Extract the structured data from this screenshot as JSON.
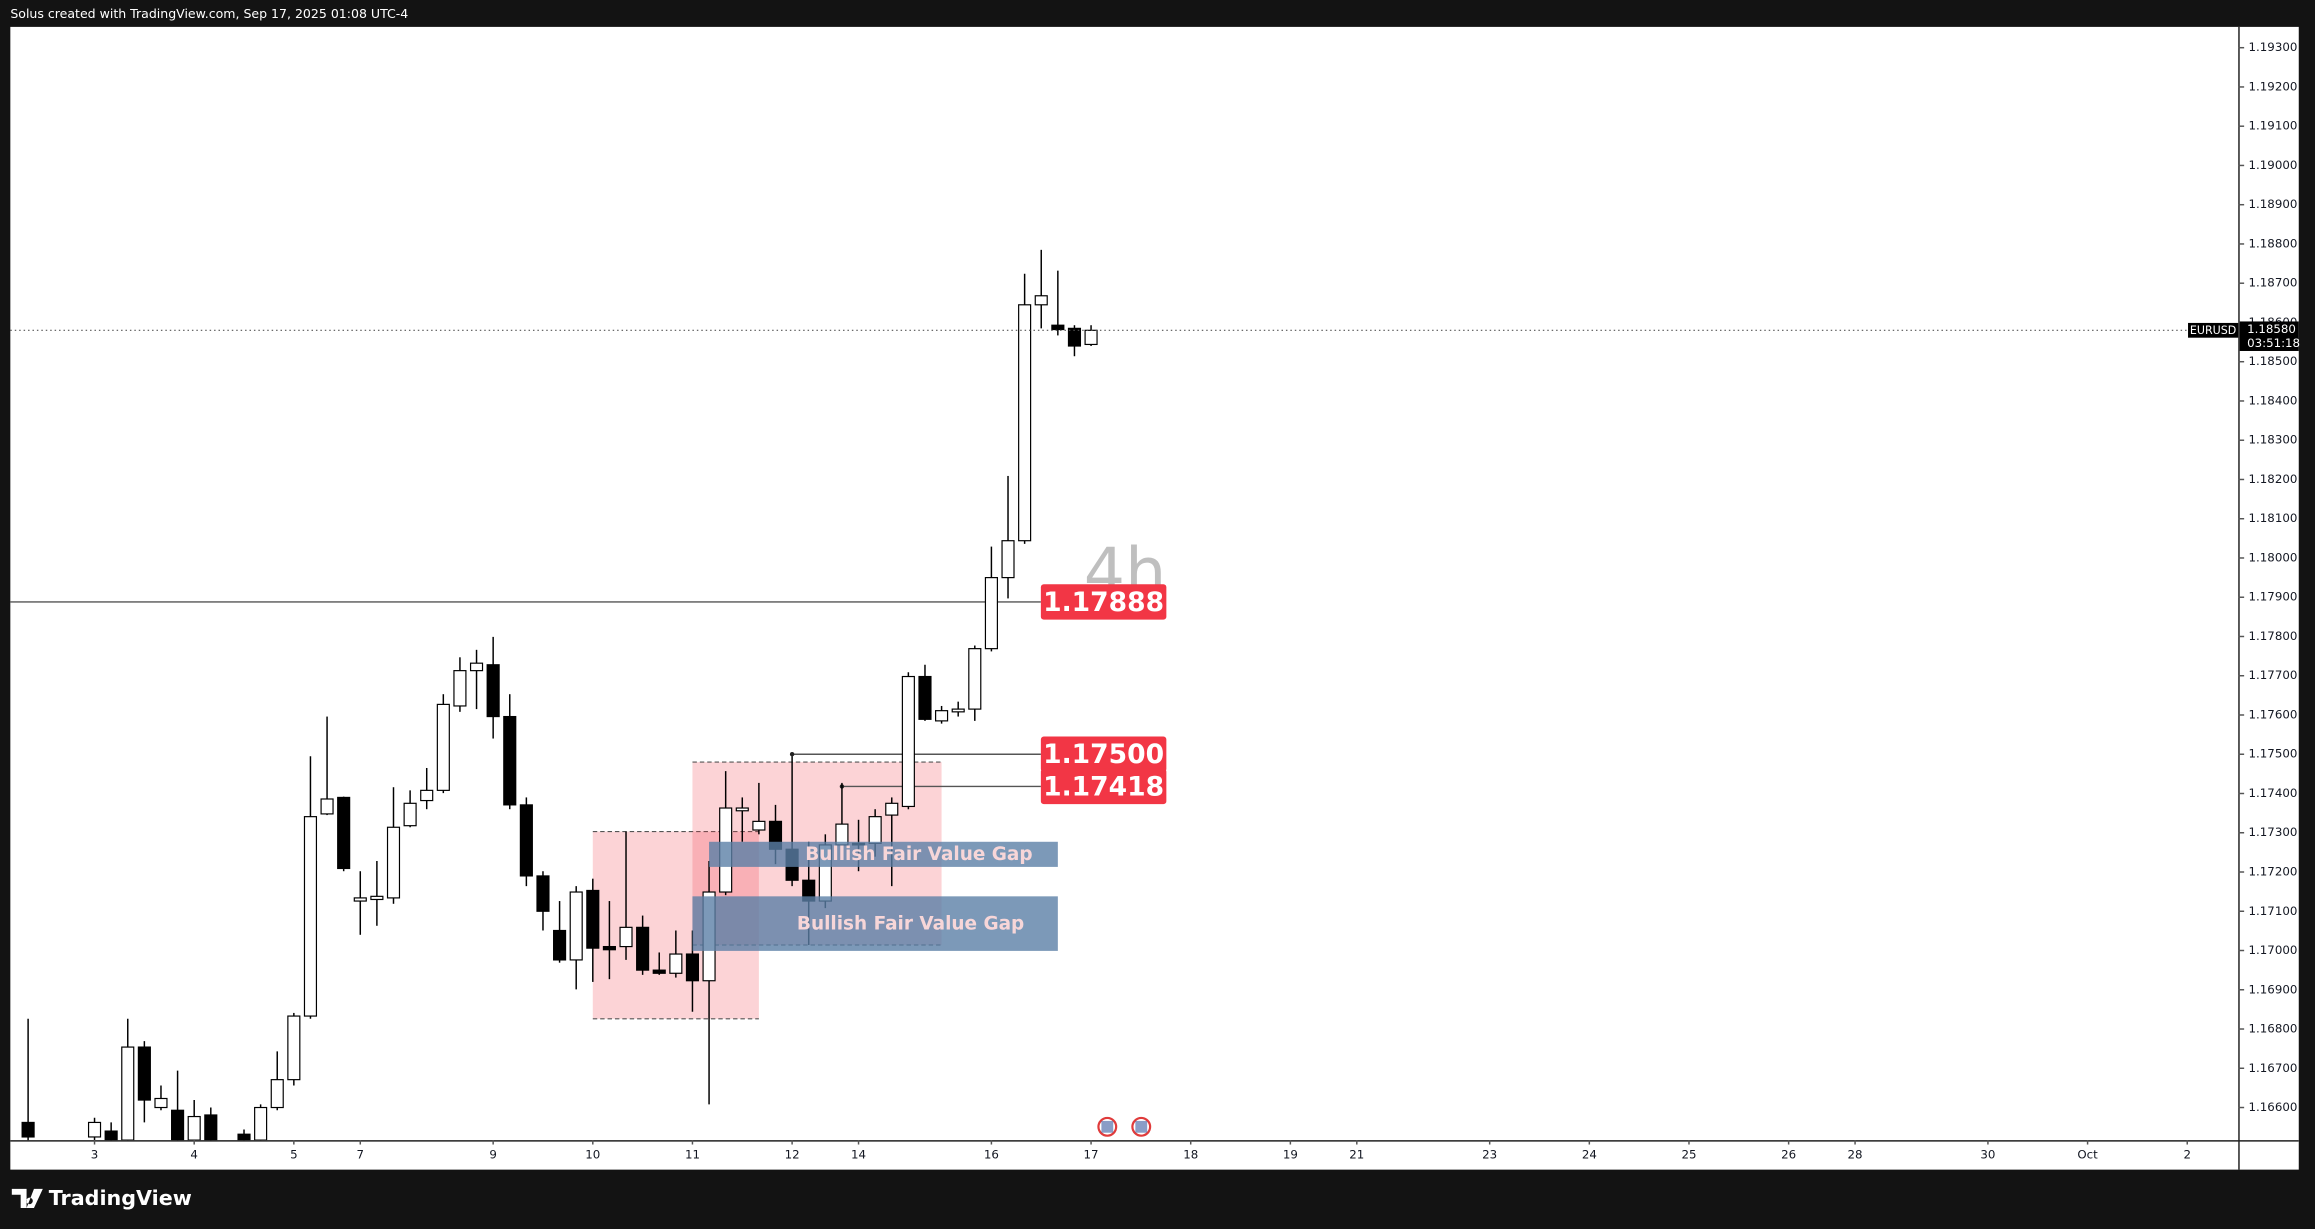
{
  "header": "Solus created with TradingView.com, Sep 17, 2025 01:08 UTC-4",
  "footer": "TradingView",
  "chart_data": {
    "type": "candlestick",
    "symbol": "EURUSD",
    "timeframe": "4h",
    "x": [
      0,
      4,
      5,
      6,
      7,
      8,
      9,
      10,
      11,
      13,
      14,
      15,
      16,
      17,
      18,
      19,
      20,
      21,
      22,
      23,
      24,
      25,
      26,
      27,
      28,
      29,
      30,
      31,
      32,
      33,
      34,
      35,
      36,
      37,
      38,
      39,
      40,
      41,
      42,
      43,
      44,
      45,
      46,
      47,
      48,
      49,
      50,
      51,
      52,
      53,
      54,
      55,
      56,
      57,
      58,
      59,
      60,
      61,
      62,
      63,
      64
    ],
    "open": [
      1.16562,
      1.16525,
      1.1654,
      1.16517,
      1.16754,
      1.166,
      1.16593,
      1.16517,
      1.16581,
      1.16532,
      1.16517,
      1.166,
      1.16671,
      1.16833,
      1.17348,
      1.1739,
      1.17126,
      1.1713,
      1.17134,
      1.17318,
      1.17382,
      1.17408,
      1.17623,
      1.17713,
      1.17728,
      1.17596,
      1.17371,
      1.1719,
      1.17051,
      1.16976,
      1.17153,
      1.1701,
      1.1701,
      1.17059,
      1.1695,
      1.16942,
      1.16991,
      1.16923,
      1.17149,
      1.17356,
      1.17307,
      1.17329,
      1.17258,
      1.17179,
      1.17126,
      1.17269,
      1.17273,
      1.17273,
      1.17345,
      1.17367,
      1.17698,
      1.17585,
      1.17608,
      1.17615,
      1.17769,
      1.1795,
      1.18044,
      1.18645,
      1.18593,
      1.18585,
      1.18544
    ],
    "high": [
      1.16826,
      1.16574,
      1.16562,
      1.16826,
      1.16769,
      1.16656,
      1.16694,
      1.16619,
      1.166,
      1.16544,
      1.16608,
      1.16743,
      1.16841,
      1.17495,
      1.17596,
      1.17392,
      1.17202,
      1.17228,
      1.17416,
      1.17408,
      1.17465,
      1.17653,
      1.17747,
      1.17766,
      1.17799,
      1.17653,
      1.1739,
      1.17202,
      1.17126,
      1.17164,
      1.17183,
      1.17126,
      1.17303,
      1.17089,
      1.16995,
      1.17051,
      1.17051,
      1.17228,
      1.17457,
      1.1739,
      1.17427,
      1.17371,
      1.17495,
      1.17277,
      1.17296,
      1.17427,
      1.17333,
      1.1736,
      1.1739,
      1.17709,
      1.17728,
      1.17623,
      1.17634,
      1.17777,
      1.18029,
      1.18209,
      1.18724,
      1.18785,
      1.18732,
      1.18593,
      1.18593
    ],
    "low": [
      1.16487,
      1.16517,
      1.16506,
      1.16506,
      1.16562,
      1.16593,
      1.16506,
      1.16506,
      1.16506,
      1.16506,
      1.16506,
      1.16593,
      1.16656,
      1.16826,
      1.17345,
      1.17202,
      1.1704,
      1.17063,
      1.17119,
      1.17314,
      1.1736,
      1.17401,
      1.17608,
      1.17615,
      1.1754,
      1.1736,
      1.17164,
      1.17051,
      1.16969,
      1.16901,
      1.1692,
      1.16927,
      1.16976,
      1.16938,
      1.16938,
      1.16931,
      1.16844,
      1.16608,
      1.17141,
      1.17277,
      1.17296,
      1.1722,
      1.17164,
      1.17014,
      1.17108,
      1.17258,
      1.17202,
      1.17239,
      1.17164,
      1.1736,
      1.17585,
      1.17578,
      1.17596,
      1.17585,
      1.17762,
      1.17897,
      1.18036,
      1.18585,
      1.18567,
      1.18514,
      1.1854
    ],
    "close": [
      1.16525,
      1.16562,
      1.16517,
      1.16754,
      1.16619,
      1.16623,
      1.16517,
      1.16577,
      1.16517,
      1.16517,
      1.166,
      1.16671,
      1.16833,
      1.17341,
      1.17386,
      1.17209,
      1.17134,
      1.17138,
      1.17314,
      1.17375,
      1.17408,
      1.17627,
      1.17713,
      1.17732,
      1.17596,
      1.17371,
      1.1719,
      1.171,
      1.16976,
      1.17149,
      1.17006,
      1.17002,
      1.17059,
      1.1695,
      1.16942,
      1.16991,
      1.16923,
      1.17149,
      1.17363,
      1.17363,
      1.17329,
      1.17258,
      1.17179,
      1.17126,
      1.17269,
      1.17322,
      1.17269,
      1.17341,
      1.17375,
      1.17698,
      1.17589,
      1.17611,
      1.17615,
      1.17769,
      1.1795,
      1.18044,
      1.18645,
      1.18668,
      1.18582,
      1.1854,
      1.1858
    ],
    "up_color": "#ffffff",
    "down_color": "#000000",
    "xlim": [
      -1.07,
      133.07
    ],
    "xticks": [
      {
        "value": 4,
        "label": "3"
      },
      {
        "value": 10,
        "label": "4"
      },
      {
        "value": 16,
        "label": "5"
      },
      {
        "value": 20,
        "label": "7"
      },
      {
        "value": 28,
        "label": "9"
      },
      {
        "value": 34,
        "label": "10"
      },
      {
        "value": 40,
        "label": "11"
      },
      {
        "value": 46,
        "label": "12"
      },
      {
        "value": 50,
        "label": "14"
      },
      {
        "value": 58,
        "label": "16"
      },
      {
        "value": 64,
        "label": "17"
      },
      {
        "value": 70,
        "label": "18"
      },
      {
        "value": 76,
        "label": "19"
      },
      {
        "value": 80,
        "label": "21"
      },
      {
        "value": 88,
        "label": "23"
      },
      {
        "value": 94,
        "label": "24"
      },
      {
        "value": 100,
        "label": "25"
      },
      {
        "value": 106,
        "label": "26"
      },
      {
        "value": 110,
        "label": "28"
      },
      {
        "value": 118,
        "label": "30"
      },
      {
        "value": 124,
        "label": "Oct"
      },
      {
        "value": 130,
        "label": "2"
      }
    ],
    "ylim": [
      1.16517,
      1.19353
    ],
    "yticks": [
      {
        "value": 1.166,
        "label": "1.16600"
      },
      {
        "value": 1.167,
        "label": "1.16700"
      },
      {
        "value": 1.168,
        "label": "1.16800"
      },
      {
        "value": 1.169,
        "label": "1.16900"
      },
      {
        "value": 1.17,
        "label": "1.17000"
      },
      {
        "value": 1.171,
        "label": "1.17100"
      },
      {
        "value": 1.172,
        "label": "1.17200"
      },
      {
        "value": 1.173,
        "label": "1.17300"
      },
      {
        "value": 1.174,
        "label": "1.17400"
      },
      {
        "value": 1.175,
        "label": "1.17500"
      },
      {
        "value": 1.176,
        "label": "1.17600"
      },
      {
        "value": 1.177,
        "label": "1.17700"
      },
      {
        "value": 1.178,
        "label": "1.17800"
      },
      {
        "value": 1.179,
        "label": "1.17900"
      },
      {
        "value": 1.18,
        "label": "1.18000"
      },
      {
        "value": 1.181,
        "label": "1.18100"
      },
      {
        "value": 1.182,
        "label": "1.18200"
      },
      {
        "value": 1.183,
        "label": "1.18300"
      },
      {
        "value": 1.184,
        "label": "1.18400"
      },
      {
        "value": 1.185,
        "label": "1.18500"
      },
      {
        "value": 1.186,
        "label": "1.18600"
      },
      {
        "value": 1.187,
        "label": "1.18700"
      },
      {
        "value": 1.188,
        "label": "1.18800"
      },
      {
        "value": 1.189,
        "label": "1.18900"
      },
      {
        "value": 1.19,
        "label": "1.19000"
      },
      {
        "value": 1.191,
        "label": "1.19100"
      },
      {
        "value": 1.192,
        "label": "1.19200"
      },
      {
        "value": 1.193,
        "label": "1.19300"
      }
    ],
    "grid": false,
    "last_price": {
      "value": 1.1858,
      "label": "1.18580"
    },
    "countdown": "03:51:18",
    "level_color": "#f23645",
    "levels": [
      {
        "value": 1.17888
      },
      {
        "value": 1.175,
        "label": "1.17500",
        "x_from": 46
      },
      {
        "value": 1.17418,
        "x_from": 49
      }
    ],
    "zones": [
      {
        "x_from": 34,
        "x_to": 44,
        "low": 1.16826,
        "high": 1.17303
      },
      {
        "x_from": 40,
        "x_to": 55,
        "low": 1.17014,
        "high": 1.1748
      }
    ],
    "zone_color": "#f23645",
    "fvgs": [
      {
        "label": "Bullish Fair Value Gap",
        "x_from": 41,
        "x_to": 62,
        "low": 1.17213,
        "high": 1.17277
      },
      {
        "label": "Bullish Fair Value Gap",
        "x_from": 40,
        "x_to": 62,
        "low": 1.16999,
        "high": 1.17138
      }
    ],
    "fvg_color": "#5b7fa6"
  }
}
